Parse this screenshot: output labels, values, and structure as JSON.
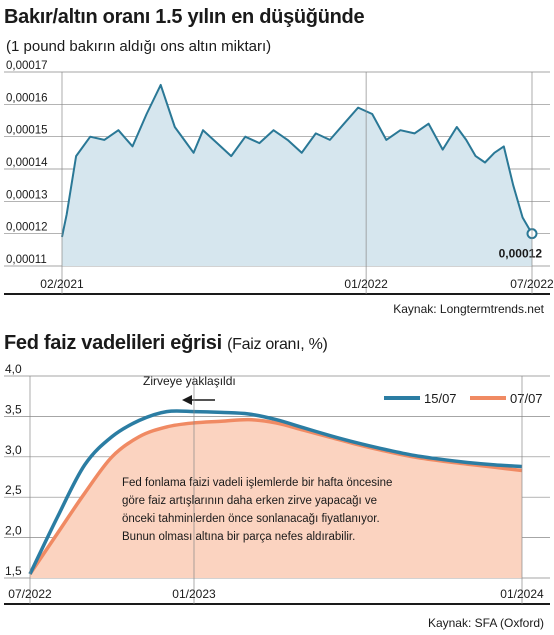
{
  "chart1": {
    "title": "Bakır/altın oranı 1.5 yılın en düşüğünde",
    "subtitle": "(1 pound bakırın aldığı ons altın miktarı)",
    "source": "Kaynak: Longtermtrends.net",
    "last_value_label": "0,00012",
    "colors": {
      "line": "#2a7896",
      "area": "#d6e6ee",
      "grid": "#888888"
    }
  },
  "chart2": {
    "title": "Fed faiz vadelileri eğrisi",
    "title_suffix": "(Faiz oranı, %)",
    "source": "Kaynak: SFA (Oxford)",
    "annotation_label": "Zirveye yaklaşıldı",
    "note": [
      "Fed fonlama faizi  vadeli işlemlerde bir hafta öncesine",
      "göre faiz artışlarının daha erken zirve yapacağı ve",
      "önceki tahminlerden önce sonlanacağı fiyatlanıyor.",
      "Bunun olması altına bir parça nefes aldırabilir."
    ],
    "colors": {
      "series_1507": "#2b7da3",
      "series_0707": "#f08a63",
      "area": "#fbd3c0"
    }
  },
  "chart_data": [
    {
      "type": "area",
      "title": "Bakır/altın oranı 1.5 yılın en düşüğünde",
      "subtitle": "(1 pound bakırın aldığı ons altın miktarı)",
      "yticks": [
        "0,00017",
        "0,00016",
        "0,00015",
        "0,00014",
        "0,00013",
        "0,00012",
        "0,00011"
      ],
      "xticks": [
        "02/2021",
        "01/2022",
        "07/2022"
      ],
      "ylim": [
        0.00011,
        0.00017
      ],
      "x_range": [
        "2021-02",
        "2022-07"
      ],
      "grid": true,
      "x": [
        0,
        0.01,
        0.03,
        0.06,
        0.09,
        0.12,
        0.15,
        0.18,
        0.21,
        0.24,
        0.26,
        0.28,
        0.3,
        0.33,
        0.36,
        0.39,
        0.42,
        0.45,
        0.48,
        0.51,
        0.54,
        0.57,
        0.6,
        0.63,
        0.66,
        0.69,
        0.72,
        0.75,
        0.78,
        0.81,
        0.84,
        0.86,
        0.88,
        0.9,
        0.92,
        0.94,
        0.96,
        0.98,
        1.0
      ],
      "values": [
        0.000119,
        0.000126,
        0.000144,
        0.00015,
        0.000149,
        0.000152,
        0.000147,
        0.000157,
        0.000166,
        0.000153,
        0.000149,
        0.000145,
        0.000152,
        0.000148,
        0.000144,
        0.00015,
        0.000148,
        0.000152,
        0.000149,
        0.000145,
        0.000151,
        0.000149,
        0.000154,
        0.000159,
        0.000157,
        0.000149,
        0.000152,
        0.000151,
        0.000154,
        0.000146,
        0.000153,
        0.000149,
        0.000144,
        0.000142,
        0.000145,
        0.000147,
        0.000135,
        0.000125,
        0.00012
      ],
      "last_value": 0.00012
    },
    {
      "type": "line",
      "title": "Fed faiz vadelileri eğrisi",
      "ylabel": "(Faiz oranı, %)",
      "yticks": [
        "4,0",
        "3,5",
        "3,0",
        "2,5",
        "2,0",
        "1,5"
      ],
      "xticks": [
        "07/2022",
        "01/2023",
        "01/2024"
      ],
      "ylim": [
        1.5,
        4.0
      ],
      "x_range": [
        "2022-07",
        "2024-01"
      ],
      "legend": "top-right",
      "grid": true,
      "series": [
        {
          "name": "15/07",
          "x": [
            "2022-07",
            "2022-08",
            "2022-09",
            "2022-10",
            "2022-11",
            "2022-12",
            "2023-01",
            "2023-02",
            "2023-03",
            "2023-04",
            "2023-05",
            "2023-06",
            "2023-07",
            "2023-08",
            "2023-09",
            "2023-10",
            "2023-11",
            "2023-12",
            "2024-01"
          ],
          "values": [
            1.55,
            2.25,
            2.9,
            3.25,
            3.45,
            3.56,
            3.56,
            3.55,
            3.53,
            3.46,
            3.36,
            3.26,
            3.17,
            3.09,
            3.02,
            2.97,
            2.93,
            2.9,
            2.88
          ]
        },
        {
          "name": "07/07",
          "x": [
            "2022-07",
            "2022-08",
            "2022-09",
            "2022-10",
            "2022-11",
            "2022-12",
            "2023-01",
            "2023-02",
            "2023-03",
            "2023-04",
            "2023-05",
            "2023-06",
            "2023-07",
            "2023-08",
            "2023-09",
            "2023-10",
            "2023-11",
            "2023-12",
            "2024-01"
          ],
          "values": [
            1.55,
            2.05,
            2.55,
            3.0,
            3.25,
            3.37,
            3.42,
            3.44,
            3.46,
            3.42,
            3.33,
            3.24,
            3.15,
            3.07,
            3.0,
            2.95,
            2.91,
            2.87,
            2.83
          ]
        }
      ]
    }
  ]
}
